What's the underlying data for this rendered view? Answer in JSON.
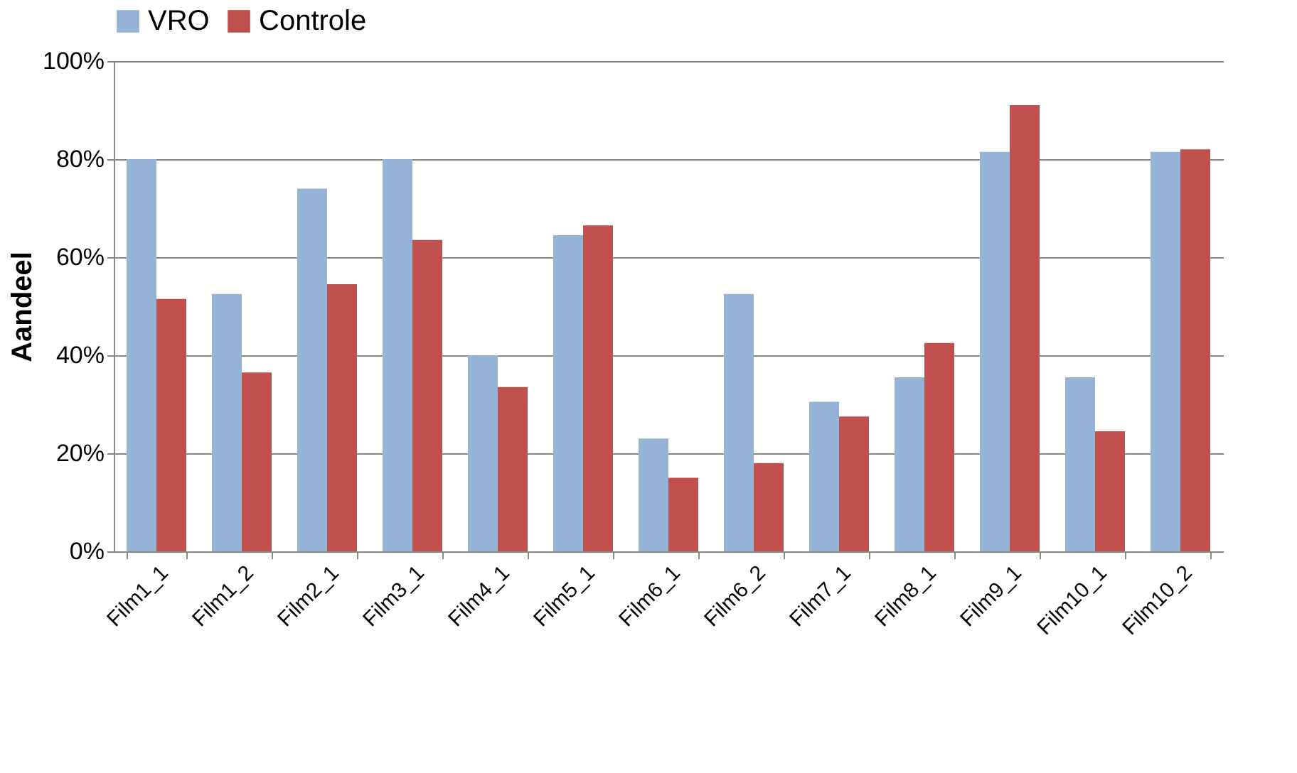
{
  "chart_data": {
    "type": "bar",
    "ylabel": "Aandeel",
    "categories": [
      "Film1_1",
      "Film1_2",
      "Film2_1",
      "Film3_1",
      "Film4_1",
      "Film5_1",
      "Film6_1",
      "Film6_2",
      "Film7_1",
      "Film8_1",
      "Film9_1",
      "Film10_1",
      "Film10_2"
    ],
    "series": [
      {
        "name": "VRO",
        "color": "#95b3d7",
        "values": [
          0.8,
          0.525,
          0.74,
          0.8,
          0.4,
          0.645,
          0.23,
          0.525,
          0.305,
          0.355,
          0.815,
          0.355,
          0.815
        ]
      },
      {
        "name": "Controle",
        "color": "#c0504d",
        "values": [
          0.515,
          0.365,
          0.545,
          0.635,
          0.335,
          0.665,
          0.15,
          0.18,
          0.275,
          0.425,
          0.91,
          0.245,
          0.82
        ]
      }
    ],
    "ylim": [
      0,
      1
    ],
    "yticks": [
      {
        "value": 0,
        "label": "0%"
      },
      {
        "value": 0.2,
        "label": "20%"
      },
      {
        "value": 0.4,
        "label": "40%"
      },
      {
        "value": 0.6,
        "label": "60%"
      },
      {
        "value": 0.8,
        "label": "80%"
      },
      {
        "value": 1,
        "label": "100%"
      }
    ],
    "grid": "y",
    "legend": "top"
  }
}
